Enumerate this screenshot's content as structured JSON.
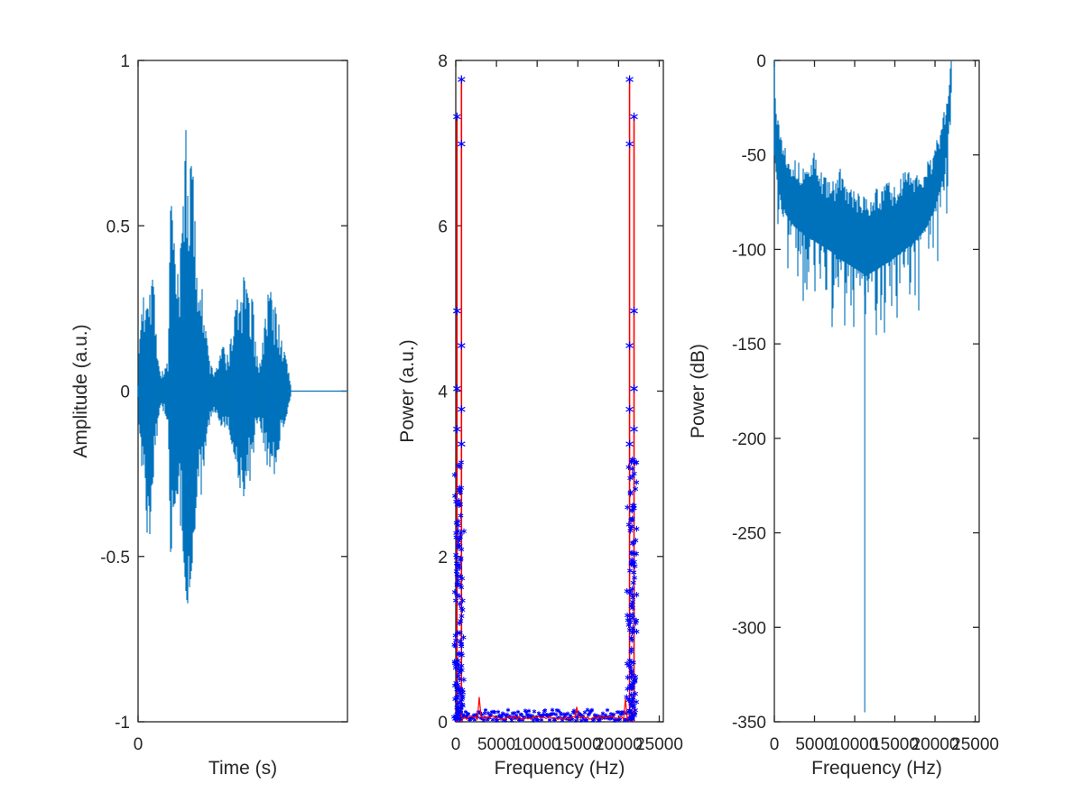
{
  "figure": {
    "background": "#ffffff",
    "axis_color": "#262626",
    "matlab_blue": "#0072BD",
    "pure_red": "#FF0000",
    "pure_blue": "#0000FF"
  },
  "chart_data": [
    {
      "id": "waveform",
      "type": "line",
      "title": "",
      "xlabel": "Time (s)",
      "ylabel": "Amplitude (a.u.)",
      "xlim": [
        0,
        0.9
      ],
      "ylim": [
        -1,
        1
      ],
      "xticks": [
        0
      ],
      "yticks": [
        -1,
        -0.5,
        0,
        0.5,
        1
      ],
      "grid": false,
      "line_color": "#0072BD",
      "signal_end_time": 0.657,
      "description": "filled speech-like oscillogram, flat zero line after signal end",
      "envelope": [
        [
          0.0,
          0.03,
          -0.03
        ],
        [
          0.006,
          0.16,
          -0.14
        ],
        [
          0.012,
          0.22,
          -0.2
        ],
        [
          0.02,
          0.3,
          -0.26
        ],
        [
          0.028,
          0.26,
          -0.24
        ],
        [
          0.036,
          0.34,
          -0.38
        ],
        [
          0.043,
          0.37,
          -0.5
        ],
        [
          0.05,
          0.32,
          -0.44
        ],
        [
          0.058,
          0.35,
          -0.3
        ],
        [
          0.066,
          0.33,
          -0.26
        ],
        [
          0.075,
          0.24,
          -0.2
        ],
        [
          0.085,
          0.12,
          -0.1
        ],
        [
          0.093,
          0.06,
          -0.05
        ],
        [
          0.104,
          0.06,
          -0.06
        ],
        [
          0.118,
          0.07,
          -0.07
        ],
        [
          0.13,
          0.1,
          -0.1
        ],
        [
          0.14,
          0.6,
          -0.5
        ],
        [
          0.147,
          0.52,
          -0.55
        ],
        [
          0.155,
          0.45,
          -0.38
        ],
        [
          0.163,
          0.32,
          -0.3
        ],
        [
          0.172,
          0.36,
          -0.35
        ],
        [
          0.181,
          0.42,
          -0.4
        ],
        [
          0.19,
          0.5,
          -0.45
        ],
        [
          0.198,
          0.62,
          -0.52
        ],
        [
          0.205,
          0.8,
          -0.6
        ],
        [
          0.212,
          0.68,
          -0.65
        ],
        [
          0.22,
          0.63,
          -0.6
        ],
        [
          0.228,
          0.7,
          -0.55
        ],
        [
          0.236,
          0.66,
          -0.5
        ],
        [
          0.244,
          0.52,
          -0.42
        ],
        [
          0.252,
          0.4,
          -0.36
        ],
        [
          0.26,
          0.32,
          -0.3
        ],
        [
          0.268,
          0.42,
          -0.34
        ],
        [
          0.276,
          0.3,
          -0.28
        ],
        [
          0.284,
          0.22,
          -0.22
        ],
        [
          0.293,
          0.17,
          -0.15
        ],
        [
          0.302,
          0.12,
          -0.12
        ],
        [
          0.312,
          0.08,
          -0.08
        ],
        [
          0.325,
          0.06,
          -0.06
        ],
        [
          0.34,
          0.08,
          -0.07
        ],
        [
          0.354,
          0.11,
          -0.1
        ],
        [
          0.366,
          0.14,
          -0.12
        ],
        [
          0.378,
          0.1,
          -0.1
        ],
        [
          0.39,
          0.12,
          -0.11
        ],
        [
          0.4,
          0.16,
          -0.15
        ],
        [
          0.41,
          0.2,
          -0.18
        ],
        [
          0.42,
          0.25,
          -0.22
        ],
        [
          0.43,
          0.29,
          -0.26
        ],
        [
          0.44,
          0.26,
          -0.3
        ],
        [
          0.45,
          0.3,
          -0.34
        ],
        [
          0.457,
          0.38,
          -0.3
        ],
        [
          0.465,
          0.31,
          -0.26
        ],
        [
          0.474,
          0.28,
          -0.24
        ],
        [
          0.483,
          0.24,
          -0.28
        ],
        [
          0.492,
          0.3,
          -0.22
        ],
        [
          0.5,
          0.18,
          -0.16
        ],
        [
          0.51,
          0.11,
          -0.1
        ],
        [
          0.52,
          0.09,
          -0.09
        ],
        [
          0.53,
          0.12,
          -0.12
        ],
        [
          0.54,
          0.17,
          -0.16
        ],
        [
          0.55,
          0.24,
          -0.2
        ],
        [
          0.56,
          0.3,
          -0.25
        ],
        [
          0.567,
          0.32,
          -0.28
        ],
        [
          0.575,
          0.27,
          -0.3
        ],
        [
          0.584,
          0.24,
          -0.26
        ],
        [
          0.592,
          0.26,
          -0.22
        ],
        [
          0.601,
          0.22,
          -0.19
        ],
        [
          0.61,
          0.18,
          -0.16
        ],
        [
          0.62,
          0.14,
          -0.12
        ],
        [
          0.632,
          0.11,
          -0.09
        ],
        [
          0.644,
          0.07,
          -0.06
        ],
        [
          0.653,
          0.04,
          -0.03
        ],
        [
          0.657,
          0.01,
          -0.01
        ]
      ]
    },
    {
      "id": "power-linear",
      "type": "line",
      "title": "",
      "xlabel": "Frequency (Hz)",
      "ylabel": "Power (a.u.)",
      "xlim": [
        0,
        25500
      ],
      "ylim": [
        0,
        8
      ],
      "xticks": [
        0,
        5000,
        10000,
        15000,
        20000,
        25000
      ],
      "yticks": [
        0,
        2,
        4,
        6,
        8
      ],
      "grid": false,
      "nyquist": 22050,
      "line_color": "#FF0000",
      "marker_color": "#0000FF",
      "red_lines": [
        {
          "f": 150,
          "peak": 7.32
        },
        {
          "f": 700,
          "peak": 7.77
        },
        {
          "f": 21350,
          "peak": 7.77
        },
        {
          "f": 21900,
          "peak": 7.32
        }
      ],
      "marker_values": [
        7.77,
        7.32,
        6.99,
        4.97,
        4.55,
        4.03,
        3.78,
        3.54,
        3.36
      ],
      "dense_marker_max": 3.2,
      "cluster_centers": [
        440,
        21628
      ],
      "cluster_spread_hz": 700,
      "noise_floor_max": 0.13,
      "red_baseline": 0.05,
      "red_blips": [
        {
          "f": 2800,
          "v": 0.3
        },
        {
          "f": 14900,
          "v": 0.18
        },
        {
          "f": 20800,
          "v": 0.28
        }
      ]
    },
    {
      "id": "power-db",
      "type": "line",
      "title": "",
      "xlabel": "Frequency (Hz)",
      "ylabel": "Power (dB)",
      "xlim": [
        0,
        25500
      ],
      "ylim": [
        -350,
        0
      ],
      "xticks": [
        0,
        5000,
        10000,
        15000,
        20000,
        25000
      ],
      "yticks": [
        0,
        -50,
        -100,
        -150,
        -200,
        -250,
        -300,
        -350
      ],
      "grid": false,
      "nyquist": 22050,
      "line_color": "#0072BD",
      "deep_notch": {
        "f": 11250,
        "v": -345
      },
      "top_envelope": [
        [
          0,
          -2
        ],
        [
          100,
          -14
        ],
        [
          300,
          -28
        ],
        [
          700,
          -40
        ],
        [
          1200,
          -48
        ],
        [
          2000,
          -55
        ],
        [
          3000,
          -60
        ],
        [
          4000,
          -62
        ],
        [
          4950,
          -54
        ],
        [
          5600,
          -64
        ],
        [
          6500,
          -67
        ],
        [
          7400,
          -70
        ],
        [
          8100,
          -62
        ],
        [
          8800,
          -70
        ],
        [
          9600,
          -73
        ],
        [
          10400,
          -76
        ],
        [
          11200,
          -78
        ],
        [
          12000,
          -76
        ],
        [
          12800,
          -73
        ],
        [
          13500,
          -75
        ],
        [
          13950,
          -67
        ],
        [
          14800,
          -73
        ],
        [
          15600,
          -70
        ],
        [
          16700,
          -58
        ],
        [
          17400,
          -67
        ],
        [
          18200,
          -66
        ],
        [
          19000,
          -60
        ],
        [
          19800,
          -52
        ],
        [
          20500,
          -42
        ],
        [
          21100,
          -32
        ],
        [
          21600,
          -22
        ],
        [
          21900,
          -10
        ],
        [
          22050,
          -1
        ]
      ],
      "bottom_envelope": [
        [
          0,
          -50
        ],
        [
          300,
          -62
        ],
        [
          800,
          -74
        ],
        [
          1500,
          -82
        ],
        [
          2500,
          -88
        ],
        [
          4000,
          -93
        ],
        [
          5500,
          -97
        ],
        [
          7000,
          -101
        ],
        [
          8500,
          -106
        ],
        [
          10000,
          -110
        ],
        [
          11450,
          -114
        ],
        [
          13000,
          -110
        ],
        [
          14500,
          -106
        ],
        [
          16000,
          -101
        ],
        [
          17500,
          -96
        ],
        [
          19000,
          -88
        ],
        [
          20000,
          -78
        ],
        [
          20800,
          -66
        ],
        [
          21400,
          -50
        ],
        [
          21800,
          -32
        ],
        [
          22050,
          -10
        ]
      ]
    }
  ]
}
